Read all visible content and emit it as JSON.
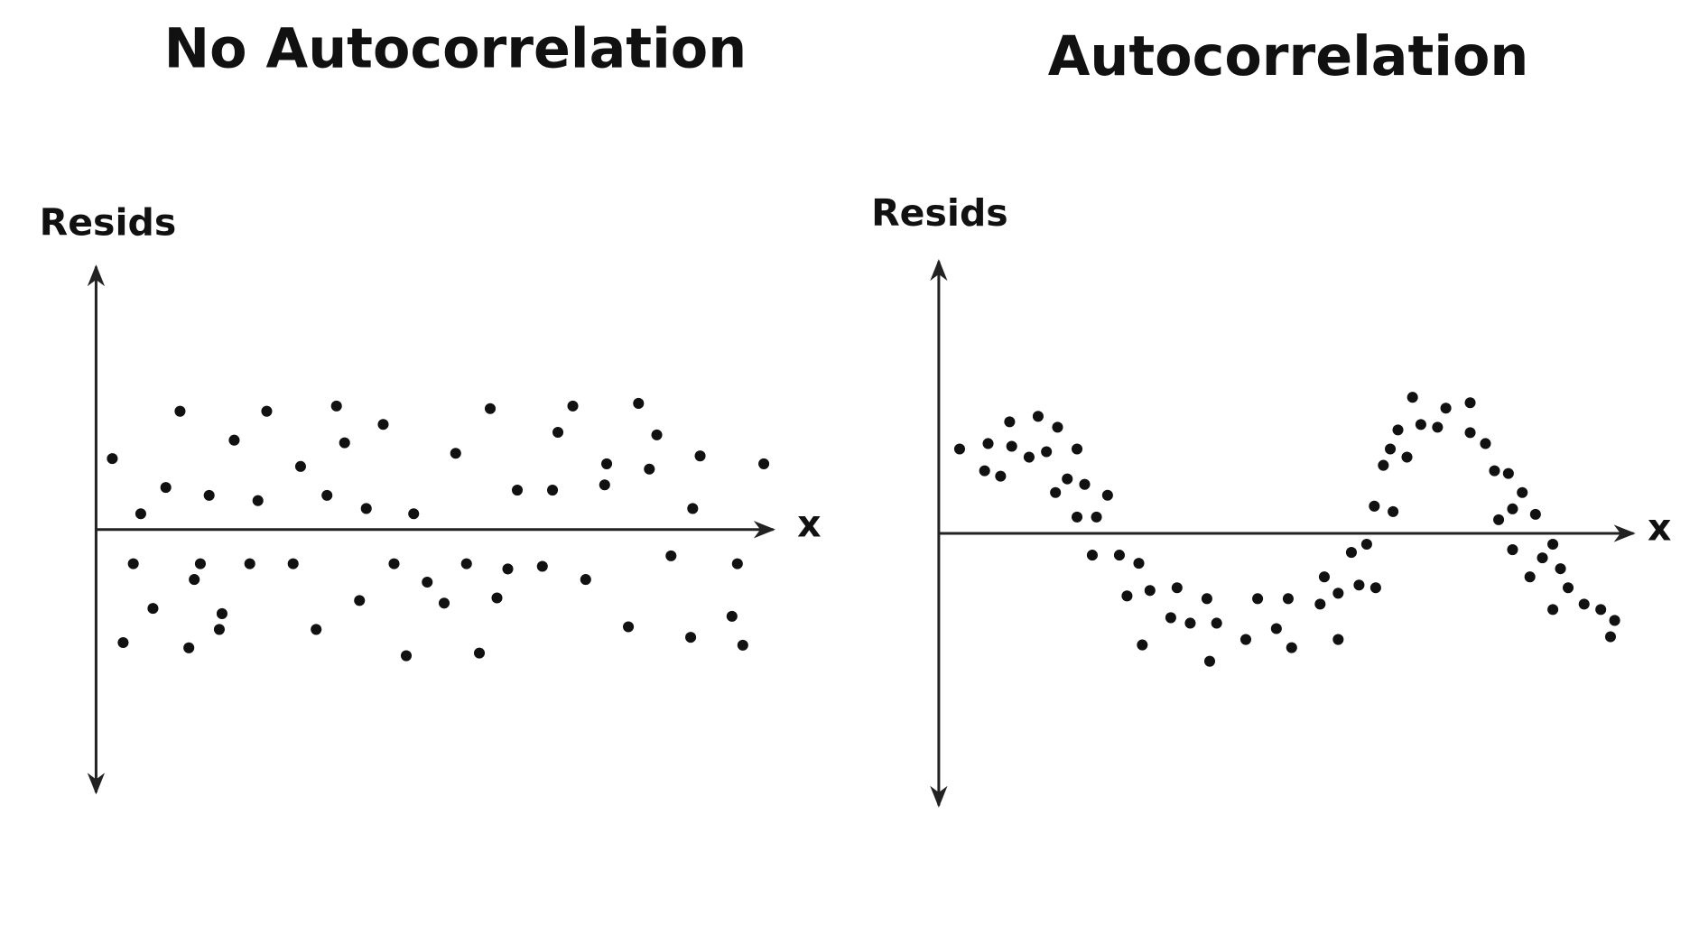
{
  "chart_data": [
    {
      "type": "scatter",
      "title": "No Autocorrelation",
      "y_label": "Resids",
      "x_label": "x",
      "color": "#111111",
      "xlim": [
        0,
        100
      ],
      "ylim": [
        -10,
        10
      ],
      "x": [
        2.4,
        4.0,
        5.5,
        6.6,
        8.4,
        10.3,
        12.4,
        13.7,
        14.5,
        15.4,
        16.7,
        18.2,
        18.6,
        20.4,
        22.7,
        23.9,
        25.2,
        29.1,
        30.2,
        32.5,
        34.1,
        35.5,
        36.7,
        38.9,
        39.9,
        42.4,
        44.0,
        45.8,
        46.9,
        48.9,
        51.4,
        53.1,
        54.7,
        56.6,
        58.2,
        59.2,
        60.8,
        62.2,
        65.9,
        67.4,
        68.2,
        70.4,
        72.3,
        75.1,
        75.4,
        78.6,
        80.1,
        81.7,
        82.8,
        84.9,
        87.8,
        88.1,
        89.2,
        93.9,
        94.7,
        95.5,
        98.6
      ],
      "values": [
        2.7,
        -4.3,
        -1.3,
        0.6,
        -3.0,
        1.6,
        4.5,
        -4.5,
        -1.9,
        -1.3,
        1.3,
        -3.8,
        -3.2,
        3.4,
        -1.3,
        1.1,
        4.5,
        -1.3,
        2.4,
        -3.8,
        1.3,
        4.7,
        3.3,
        -2.7,
        0.8,
        4.0,
        -1.3,
        -4.8,
        0.6,
        -2.0,
        -2.8,
        2.9,
        -1.3,
        -4.7,
        4.6,
        -2.6,
        -1.5,
        1.5,
        -1.4,
        1.5,
        3.7,
        4.7,
        -1.9,
        1.7,
        2.5,
        -3.7,
        4.8,
        2.3,
        3.6,
        -1.0,
        -4.1,
        0.8,
        2.8,
        -3.3,
        -1.3,
        -4.4,
        2.5
      ]
    },
    {
      "type": "scatter",
      "title": "Autocorrelation",
      "y_label": "Resids",
      "x_label": "x",
      "color": "#111111",
      "xlim": [
        0,
        100
      ],
      "ylim": [
        -10,
        10
      ],
      "x": [
        3.0,
        6.6,
        7.1,
        8.9,
        10.2,
        10.5,
        13.0,
        14.3,
        15.5,
        17.1,
        16.8,
        18.5,
        19.9,
        19.9,
        21.0,
        22.7,
        24.3,
        22.1,
        26.0,
        27.1,
        28.8,
        29.3,
        30.4,
        33.4,
        34.3,
        36.2,
        38.6,
        39.0,
        40.0,
        44.2,
        45.9,
        48.6,
        50.3,
        50.8,
        54.9,
        55.5,
        57.5,
        57.5,
        59.4,
        60.5,
        61.6,
        62.9,
        62.7,
        65.4,
        64.0,
        65.0,
        66.1,
        67.4,
        68.2,
        69.4,
        71.8,
        73.0,
        76.5,
        76.5,
        78.7,
        80.0,
        82.0,
        82.6,
        84.0,
        80.6,
        85.9,
        82.6,
        85.1,
        86.9,
        88.4,
        89.5,
        90.6,
        88.4,
        92.9,
        95.3,
        97.3,
        96.7
      ],
      "values": [
        3.1,
        2.3,
        3.3,
        2.1,
        4.1,
        3.2,
        2.8,
        4.3,
        3.0,
        3.9,
        1.5,
        2.0,
        3.1,
        0.6,
        1.8,
        0.6,
        1.4,
        -0.8,
        -0.8,
        -2.3,
        -1.1,
        -4.1,
        -2.1,
        -3.1,
        -2.0,
        -3.3,
        -2.4,
        -4.7,
        -3.3,
        -3.9,
        -2.4,
        -3.5,
        -2.4,
        -4.2,
        -2.6,
        -1.6,
        -3.9,
        -2.2,
        -0.7,
        -1.9,
        -0.4,
        -2.0,
        1.0,
        0.8,
        2.5,
        3.1,
        3.8,
        2.8,
        5.0,
        4.0,
        3.9,
        4.6,
        4.8,
        3.7,
        3.3,
        2.3,
        2.2,
        0.9,
        1.5,
        0.5,
        0.7,
        -0.6,
        -1.6,
        -0.9,
        -0.4,
        -1.3,
        -2.0,
        -2.8,
        -2.6,
        -2.8,
        -3.2,
        -3.8
      ]
    }
  ]
}
